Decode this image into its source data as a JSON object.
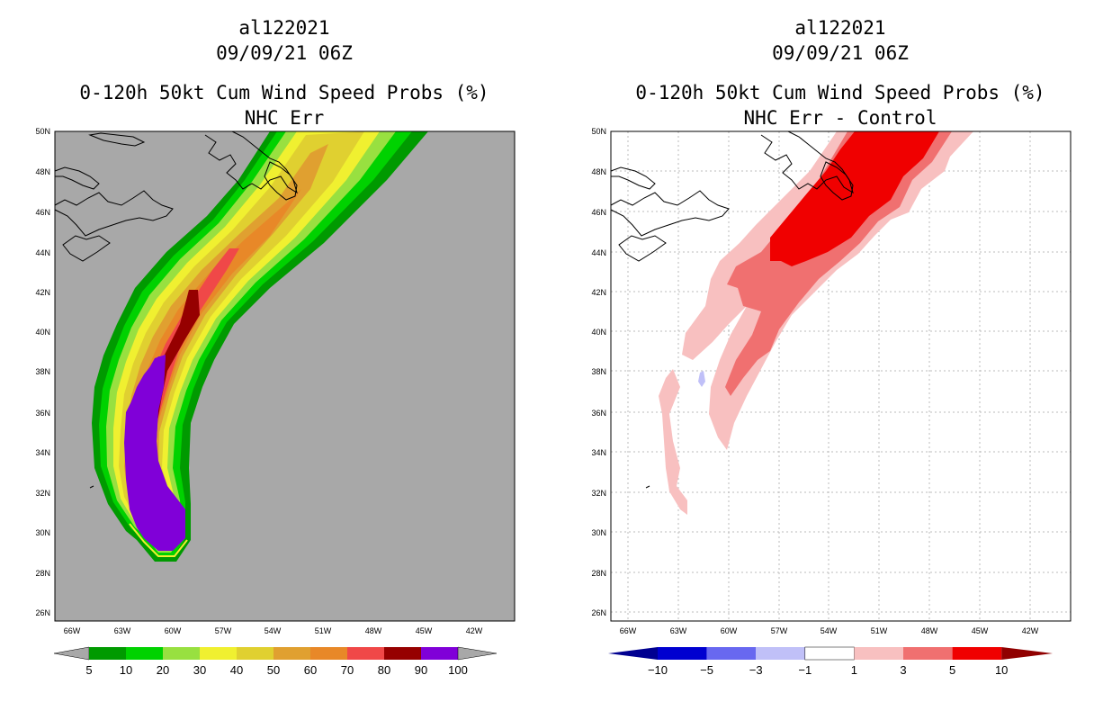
{
  "left_panel": {
    "title_line1": "al122021",
    "title_line2": "09/09/21 06Z",
    "title_line3": "0-120h 50kt Cum Wind Speed Probs (%)",
    "title_line4": "NHC Err",
    "colorbar": {
      "labels": [
        "5",
        "10",
        "20",
        "30",
        "40",
        "50",
        "60",
        "70",
        "80",
        "90",
        "100"
      ],
      "colors": [
        "#009a00",
        "#00d200",
        "#98e040",
        "#f0f030",
        "#e0d030",
        "#e0a030",
        "#e88828",
        "#f04848",
        "#960000",
        "#8000d8"
      ],
      "end_color": "#a8a8a8"
    },
    "background_color": "#a8a8a8"
  },
  "right_panel": {
    "title_line1": "al122021",
    "title_line2": "09/09/21 06Z",
    "title_line3": "0-120h 50kt Cum Wind Speed Probs (%)",
    "title_line4": "NHC Err - Control",
    "colorbar": {
      "labels": [
        "-10",
        "-5",
        "-3",
        "-1",
        "1",
        "3",
        "5",
        "10"
      ],
      "colors": [
        "#0000d0",
        "#6868f0",
        "#c0c0f8",
        "#ffffff",
        "#f8c0c0",
        "#f07070",
        "#f00000"
      ],
      "left_end_color": "#000090",
      "right_end_color": "#900000"
    }
  },
  "axes": {
    "lat_labels": [
      "50N",
      "48N",
      "46N",
      "44N",
      "42N",
      "40N",
      "38N",
      "36N",
      "34N",
      "32N",
      "30N",
      "28N",
      "26N"
    ],
    "lon_labels": [
      "66W",
      "63W",
      "60W",
      "57W",
      "54W",
      "51W",
      "48W",
      "45W",
      "42W"
    ]
  }
}
